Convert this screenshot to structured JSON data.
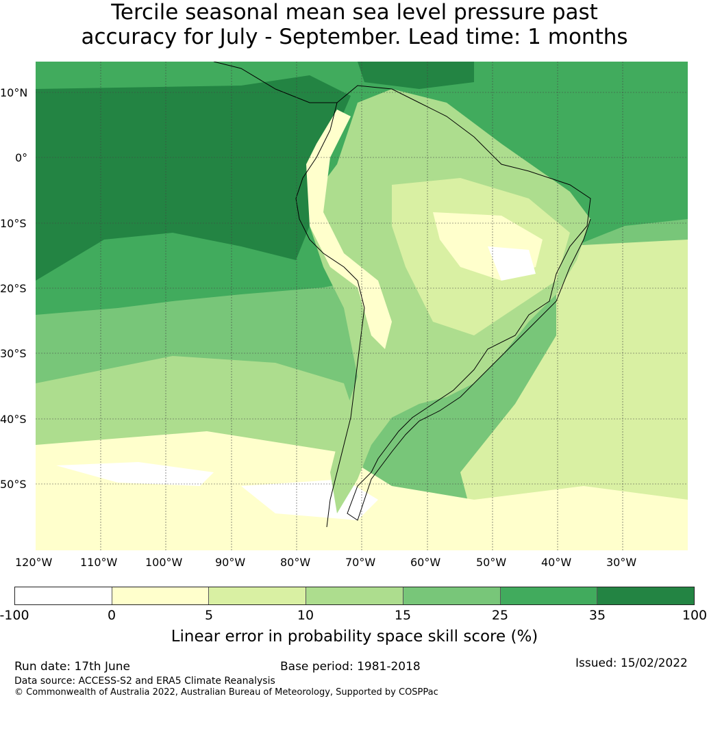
{
  "title": {
    "line1": "Tercile seasonal mean sea level pressure past",
    "line2": "accuracy for July - September. Lead time: 1 months"
  },
  "map": {
    "lat_labels": [
      "10°N",
      "0°",
      "10°S",
      "20°S",
      "30°S",
      "40°S",
      "50°S"
    ],
    "lon_labels": [
      "120°W",
      "110°W",
      "100°W",
      "90°W",
      "80°W",
      "70°W",
      "60°W",
      "50°W",
      "40°W",
      "30°W"
    ]
  },
  "colorbar": {
    "ticks": [
      "-100",
      "0",
      "5",
      "10",
      "15",
      "25",
      "35",
      "100"
    ],
    "colors": [
      "#ffffff",
      "#ffffcc",
      "#d9f0a3",
      "#addd8e",
      "#78c679",
      "#41ab5d",
      "#238443"
    ],
    "label": "Linear error in probability space skill score (%)"
  },
  "footer": {
    "run_date": "Run date: 17th June",
    "base_period": "Base period: 1981-2018",
    "issued": "Issued: 15/02/2022",
    "data_source": "Data source: ACCESS-S2 and ERA5 Climate Reanalysis",
    "copyright": "© Commonwealth of Australia 2022, Australian Bureau of Meteorology, Supported by COSPPac"
  }
}
